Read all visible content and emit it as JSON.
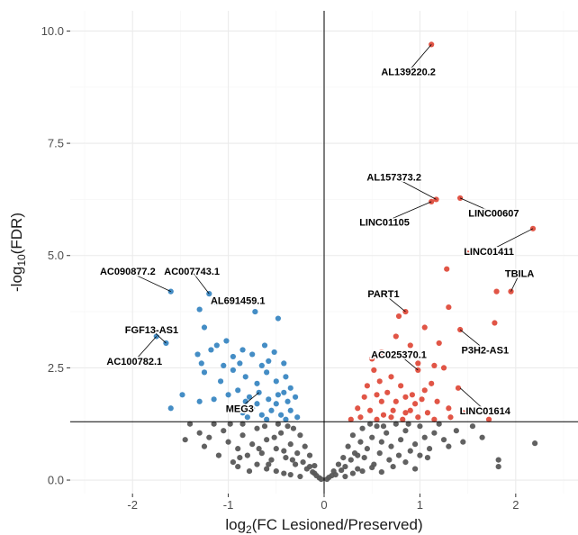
{
  "chart_data": {
    "type": "scatter",
    "subtype": "volcano",
    "title": "",
    "xlabel": "log2(FC Lesioned/Preserved)",
    "ylabel": "-log10(FDR)",
    "xlabel_parts": {
      "pre": "log",
      "sub": "2",
      "post": "(FC Lesioned/Preserved)"
    },
    "ylabel_parts": {
      "pre": "-log",
      "sub": "10",
      "post": "(FDR)"
    },
    "xlim": [
      -2.65,
      2.65
    ],
    "ylim": [
      -0.3,
      10.45
    ],
    "x_ticks": [
      -2,
      -1,
      0,
      1,
      2
    ],
    "x_tick_labels": [
      "-2",
      "-1",
      "0",
      "1",
      "2"
    ],
    "y_ticks": [
      0.0,
      2.5,
      5.0,
      7.5,
      10.0
    ],
    "y_tick_labels": [
      "0.0",
      "2.5",
      "5.0",
      "7.5",
      "10.0"
    ],
    "grid": true,
    "legend": "none",
    "reference_lines": {
      "vertical_x": 0,
      "horizontal_y": 1.3
    },
    "colors": {
      "down": "#3a87c2",
      "up": "#df4c3c",
      "ns": "#595959",
      "background": "#ffffff",
      "grid_major": "#ebebeb",
      "grid_minor": "#f5f5f5"
    },
    "series": [
      {
        "group": "up",
        "points": [
          [
            1.12,
            9.7
          ],
          [
            1.12,
            6.2
          ],
          [
            1.17,
            6.25
          ],
          [
            1.42,
            6.28
          ],
          [
            2.18,
            5.6
          ],
          [
            1.5,
            5.05
          ],
          [
            1.28,
            4.7
          ],
          [
            1.8,
            4.2
          ],
          [
            1.95,
            4.2
          ],
          [
            0.85,
            3.75
          ],
          [
            0.78,
            3.65
          ],
          [
            1.42,
            3.35
          ],
          [
            1.78,
            3.5
          ],
          [
            0.75,
            3.2
          ],
          [
            0.9,
            3.0
          ],
          [
            1.05,
            3.4
          ],
          [
            1.3,
            3.85
          ],
          [
            1.2,
            3.05
          ],
          [
            0.5,
            2.7
          ],
          [
            0.6,
            2.85
          ],
          [
            0.98,
            2.6
          ],
          [
            1.25,
            2.5
          ],
          [
            0.98,
            2.45
          ],
          [
            0.7,
            2.3
          ],
          [
            0.45,
            2.1
          ],
          [
            0.58,
            2.2
          ],
          [
            0.8,
            2.1
          ],
          [
            0.92,
            1.9
          ],
          [
            1.12,
            2.15
          ],
          [
            1.4,
            2.05
          ],
          [
            0.42,
            1.85
          ],
          [
            0.55,
            1.9
          ],
          [
            0.66,
            1.95
          ],
          [
            0.75,
            1.75
          ],
          [
            0.85,
            1.85
          ],
          [
            0.95,
            1.7
          ],
          [
            1.02,
            1.8
          ],
          [
            1.18,
            1.75
          ],
          [
            1.3,
            1.6
          ],
          [
            1.45,
            1.5
          ],
          [
            0.35,
            1.6
          ],
          [
            0.48,
            1.55
          ],
          [
            0.62,
            1.45
          ],
          [
            0.72,
            1.55
          ],
          [
            0.85,
            1.5
          ],
          [
            0.98,
            1.4
          ],
          [
            1.08,
            1.5
          ],
          [
            0.38,
            1.4
          ],
          [
            0.55,
            1.35
          ],
          [
            0.7,
            1.4
          ],
          [
            0.82,
            1.35
          ],
          [
            1.15,
            1.35
          ],
          [
            1.32,
            1.4
          ],
          [
            1.72,
            1.35
          ],
          [
            0.28,
            1.35
          ],
          [
            1.15,
            2.55
          ],
          [
            0.6,
            1.75
          ],
          [
            0.9,
            1.55
          ],
          [
            1.05,
            2.0
          ],
          [
            0.52,
            2.45
          ]
        ]
      },
      {
        "group": "down",
        "points": [
          [
            -1.6,
            4.2
          ],
          [
            -1.75,
            3.2
          ],
          [
            -1.65,
            3.05
          ],
          [
            -1.2,
            4.15
          ],
          [
            -1.12,
            3.95
          ],
          [
            -1.3,
            3.8
          ],
          [
            -1.25,
            3.4
          ],
          [
            -0.72,
            3.75
          ],
          [
            -0.48,
            3.6
          ],
          [
            -1.48,
            1.9
          ],
          [
            -1.6,
            1.6
          ],
          [
            -1.18,
            2.9
          ],
          [
            -1.32,
            2.8
          ],
          [
            -1.12,
            3.0
          ],
          [
            -1.02,
            3.1
          ],
          [
            -1.28,
            2.6
          ],
          [
            -0.95,
            2.75
          ],
          [
            -0.85,
            2.9
          ],
          [
            -0.75,
            2.8
          ],
          [
            -0.62,
            3.0
          ],
          [
            -0.52,
            2.85
          ],
          [
            -0.42,
            2.6
          ],
          [
            -1.25,
            2.4
          ],
          [
            -1.08,
            2.2
          ],
          [
            -0.95,
            2.45
          ],
          [
            -0.82,
            2.3
          ],
          [
            -0.7,
            2.15
          ],
          [
            -0.6,
            2.4
          ],
          [
            -0.5,
            2.2
          ],
          [
            -0.4,
            2.3
          ],
          [
            -0.35,
            2.05
          ],
          [
            -1.15,
            1.8
          ],
          [
            -1.0,
            1.9
          ],
          [
            -0.9,
            2.0
          ],
          [
            -0.78,
            1.85
          ],
          [
            -0.68,
            1.95
          ],
          [
            -0.58,
            1.8
          ],
          [
            -0.48,
            1.9
          ],
          [
            -0.38,
            1.75
          ],
          [
            -0.3,
            1.85
          ],
          [
            -1.3,
            1.75
          ],
          [
            -0.95,
            1.6
          ],
          [
            -0.85,
            1.5
          ],
          [
            -0.75,
            1.6
          ],
          [
            -0.65,
            1.45
          ],
          [
            -0.55,
            1.55
          ],
          [
            -0.45,
            1.45
          ],
          [
            -0.35,
            1.55
          ],
          [
            -0.28,
            1.4
          ],
          [
            -0.8,
            1.4
          ],
          [
            -0.6,
            1.35
          ],
          [
            -0.4,
            1.35
          ],
          [
            -0.5,
            1.7
          ],
          [
            -0.7,
            1.7
          ],
          [
            -0.88,
            2.6
          ],
          [
            -1.05,
            2.55
          ],
          [
            -0.58,
            2.65
          ],
          [
            -0.82,
            1.75
          ],
          [
            -0.42,
            1.95
          ],
          [
            -0.65,
            2.55
          ]
        ]
      },
      {
        "group": "ns",
        "points": [
          [
            -1.4,
            1.25
          ],
          [
            -1.45,
            0.9
          ],
          [
            -1.25,
            0.75
          ],
          [
            -1.2,
            0.95
          ],
          [
            -1.05,
            1.1
          ],
          [
            -1.0,
            0.85
          ],
          [
            -0.9,
            0.7
          ],
          [
            -0.85,
            1.0
          ],
          [
            -0.8,
            0.55
          ],
          [
            -0.75,
            0.8
          ],
          [
            -0.7,
            1.15
          ],
          [
            -0.65,
            0.6
          ],
          [
            -0.6,
            0.9
          ],
          [
            -0.55,
            0.45
          ],
          [
            -0.5,
            0.7
          ],
          [
            -0.45,
            1.05
          ],
          [
            -0.4,
            0.5
          ],
          [
            -0.35,
            0.8
          ],
          [
            -0.3,
            0.35
          ],
          [
            -0.28,
            0.6
          ],
          [
            -0.25,
            1.0
          ],
          [
            -0.22,
            0.4
          ],
          [
            -0.18,
            0.25
          ],
          [
            -0.15,
            0.55
          ],
          [
            -0.12,
            0.18
          ],
          [
            -0.1,
            0.32
          ],
          [
            -0.08,
            0.1
          ],
          [
            -0.05,
            0.05
          ],
          [
            -0.03,
            0.02
          ],
          [
            -0.95,
            0.4
          ],
          [
            -0.9,
            0.3
          ],
          [
            -0.7,
            0.35
          ],
          [
            -0.6,
            0.25
          ],
          [
            -0.5,
            0.2
          ],
          [
            -0.42,
            0.15
          ],
          [
            -0.35,
            0.12
          ],
          [
            -0.25,
            0.08
          ],
          [
            -1.1,
            0.55
          ],
          [
            -0.98,
            1.25
          ],
          [
            -0.85,
            1.25
          ],
          [
            -0.62,
            1.2
          ],
          [
            -0.48,
            1.25
          ],
          [
            -0.38,
            1.2
          ],
          [
            -0.32,
            1.15
          ],
          [
            -0.2,
            0.75
          ],
          [
            -0.78,
            0.2
          ],
          [
            -0.68,
            0.7
          ],
          [
            -0.52,
            0.95
          ],
          [
            -0.42,
            0.65
          ],
          [
            -0.33,
            0.45
          ],
          [
            -0.15,
            0.3
          ],
          [
            -0.1,
            0.15
          ],
          [
            -1.15,
            1.25
          ],
          [
            -1.3,
            1.05
          ],
          [
            -0.88,
            0.5
          ],
          [
            -0.58,
            0.35
          ],
          [
            0.03,
            0.02
          ],
          [
            0.05,
            0.06
          ],
          [
            0.08,
            0.1
          ],
          [
            0.1,
            0.2
          ],
          [
            0.12,
            0.12
          ],
          [
            0.15,
            0.35
          ],
          [
            0.18,
            0.22
          ],
          [
            0.2,
            0.5
          ],
          [
            0.22,
            0.3
          ],
          [
            0.25,
            0.75
          ],
          [
            0.28,
            0.45
          ],
          [
            0.3,
            1.0
          ],
          [
            0.32,
            0.6
          ],
          [
            0.35,
            0.25
          ],
          [
            0.38,
            0.85
          ],
          [
            0.4,
            1.15
          ],
          [
            0.42,
            0.5
          ],
          [
            0.45,
            0.7
          ],
          [
            0.5,
            0.95
          ],
          [
            0.52,
            0.35
          ],
          [
            0.55,
            1.2
          ],
          [
            0.58,
            0.6
          ],
          [
            0.6,
            0.85
          ],
          [
            0.65,
            1.05
          ],
          [
            0.68,
            0.45
          ],
          [
            0.7,
            0.75
          ],
          [
            0.75,
            1.25
          ],
          [
            0.78,
            0.55
          ],
          [
            0.8,
            0.9
          ],
          [
            0.85,
            1.1
          ],
          [
            0.9,
            0.65
          ],
          [
            0.95,
            0.8
          ],
          [
            1.0,
            1.2
          ],
          [
            1.05,
            0.95
          ],
          [
            1.1,
            0.7
          ],
          [
            1.15,
            1.05
          ],
          [
            1.2,
            1.25
          ],
          [
            1.25,
            0.9
          ],
          [
            1.3,
            0.75
          ],
          [
            1.38,
            1.1
          ],
          [
            1.45,
            0.85
          ],
          [
            1.55,
            1.2
          ],
          [
            1.65,
            0.95
          ],
          [
            1.82,
            0.45
          ],
          [
            1.82,
            0.3
          ],
          [
            2.2,
            0.82
          ],
          [
            0.3,
            0.15
          ],
          [
            0.4,
            0.2
          ],
          [
            0.5,
            0.28
          ],
          [
            0.6,
            0.18
          ],
          [
            0.72,
            0.3
          ],
          [
            0.85,
            0.4
          ],
          [
            0.95,
            0.25
          ],
          [
            1.08,
            0.5
          ],
          [
            0.48,
            1.25
          ],
          [
            0.62,
            1.2
          ],
          [
            0.88,
            1.25
          ],
          [
            1.0,
            0.55
          ],
          [
            0.22,
            0.08
          ],
          [
            0.35,
            0.55
          ]
        ]
      }
    ],
    "annotations": [
      {
        "label": "AL139220.2",
        "x": 1.12,
        "y": 9.7,
        "label_x": 0.88,
        "label_y": 9.1
      },
      {
        "label": "AL157373.2",
        "x": 1.17,
        "y": 6.25,
        "label_x": 0.73,
        "label_y": 6.75
      },
      {
        "label": "LINC01105",
        "x": 1.12,
        "y": 6.2,
        "label_x": 0.63,
        "label_y": 5.75
      },
      {
        "label": "LINC00607",
        "x": 1.42,
        "y": 6.28,
        "label_x": 1.77,
        "label_y": 5.95
      },
      {
        "label": "LINC01411",
        "x": 2.18,
        "y": 5.6,
        "label_x": 1.72,
        "label_y": 5.1
      },
      {
        "label": "TBILA",
        "x": 1.95,
        "y": 4.2,
        "label_x": 2.04,
        "label_y": 4.6
      },
      {
        "label": "PART1",
        "x": 0.85,
        "y": 3.75,
        "label_x": 0.62,
        "label_y": 4.15
      },
      {
        "label": "P3H2-AS1",
        "x": 1.42,
        "y": 3.35,
        "label_x": 1.68,
        "label_y": 2.9
      },
      {
        "label": "AC025370.1",
        "x": 0.98,
        "y": 2.45,
        "label_x": 0.78,
        "label_y": 2.8
      },
      {
        "label": "LINC01614",
        "x": 1.42,
        "y": 2.05,
        "label_x": 1.68,
        "label_y": 1.55
      },
      {
        "label": "AC090877.2",
        "x": -1.6,
        "y": 4.2,
        "label_x": -2.05,
        "label_y": 4.65
      },
      {
        "label": "AC007743.1",
        "x": -1.2,
        "y": 4.15,
        "label_x": -1.38,
        "label_y": 4.65
      },
      {
        "label": "AL691459.1",
        "x": -1.12,
        "y": 3.95,
        "label_x": -0.9,
        "label_y": 4.0
      },
      {
        "label": "FGF13-AS1",
        "x": -1.65,
        "y": 3.05,
        "label_x": -1.8,
        "label_y": 3.35
      },
      {
        "label": "AC100782.1",
        "x": -1.75,
        "y": 3.2,
        "label_x": -1.98,
        "label_y": 2.65
      },
      {
        "label": "MEG3",
        "x": -0.68,
        "y": 1.95,
        "label_x": -0.88,
        "label_y": 1.6
      }
    ]
  }
}
